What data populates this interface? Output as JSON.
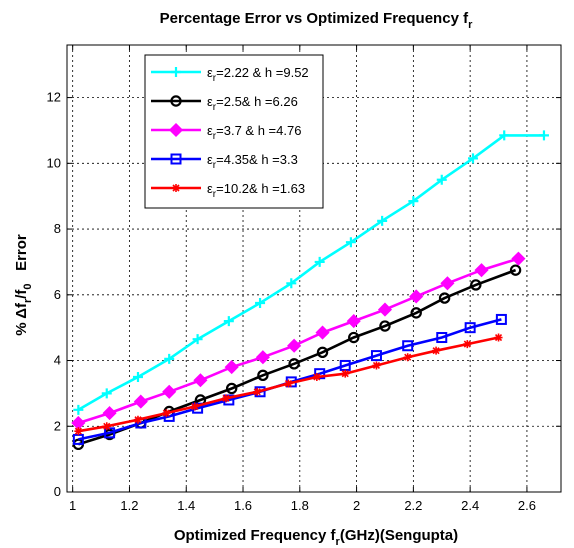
{
  "chart_data": {
    "type": "line",
    "title": "Percentage Error vs Optimized Frequency f",
    "title_sub": "r",
    "xlabel": {
      "pre": "Optimized Frequency f",
      "sub": "r",
      "post": "(GHz)(Sengupta)"
    },
    "ylabel": {
      "a": "% ",
      "delta": "Δ",
      "b": "f",
      "sub1": "r",
      "c": "/f",
      "sub2": "0",
      "d": "   Error"
    },
    "xlim": [
      0.98,
      2.72
    ],
    "ylim": [
      0,
      13.6
    ],
    "xticks": [
      1,
      1.2,
      1.4,
      1.6,
      1.8,
      2,
      2.2,
      2.4,
      2.6
    ],
    "xtick_labels": [
      "1",
      "1.2",
      "1.4",
      "1.6",
      "1.8",
      "2",
      "2.2",
      "2.4",
      "2.6"
    ],
    "yticks": [
      0,
      2,
      4,
      6,
      8,
      10,
      12
    ],
    "ytick_labels": [
      "0",
      "2",
      "4",
      "6",
      "8",
      "10",
      "12"
    ],
    "grid": true,
    "legend_position": "top-left",
    "series": [
      {
        "name": "εr=2.22 & h =9.52",
        "eps": "=2.22 & h =9.52",
        "color": "#00ffff",
        "marker": "plus",
        "x": [
          1.02,
          1.12,
          1.23,
          1.34,
          1.44,
          1.55,
          1.66,
          1.77,
          1.87,
          1.98,
          2.09,
          2.2,
          2.3,
          2.41,
          2.52,
          2.66
        ],
        "y": [
          2.5,
          3.0,
          3.5,
          4.05,
          4.65,
          5.2,
          5.75,
          6.35,
          7.0,
          7.6,
          8.25,
          8.85,
          9.5,
          10.15,
          10.85,
          10.85
        ]
      },
      {
        "name": "εr=2.5& h =6.26",
        "eps": "=2.5& h =6.26",
        "color": "#000000",
        "marker": "circle",
        "x": [
          1.02,
          1.13,
          1.24,
          1.34,
          1.45,
          1.56,
          1.67,
          1.78,
          1.88,
          1.99,
          2.1,
          2.21,
          2.31,
          2.42,
          2.56
        ],
        "y": [
          1.45,
          1.75,
          2.1,
          2.45,
          2.8,
          3.15,
          3.55,
          3.9,
          4.25,
          4.7,
          5.05,
          5.45,
          5.9,
          6.3,
          6.75
        ]
      },
      {
        "name": "εr=3.7 & h =4.76",
        "eps": "=3.7 & h =4.76",
        "color": "#ff00ff",
        "marker": "diamond",
        "x": [
          1.02,
          1.13,
          1.24,
          1.34,
          1.45,
          1.56,
          1.67,
          1.78,
          1.88,
          1.99,
          2.1,
          2.21,
          2.32,
          2.44,
          2.57
        ],
        "y": [
          2.1,
          2.4,
          2.75,
          3.05,
          3.4,
          3.8,
          4.1,
          4.45,
          4.85,
          5.2,
          5.55,
          5.95,
          6.35,
          6.75,
          7.1
        ]
      },
      {
        "name": "εr=4.35& h =3.3",
        "eps": "=4.35& h =3.3",
        "color": "#0000ff",
        "marker": "square",
        "x": [
          1.02,
          1.13,
          1.24,
          1.34,
          1.44,
          1.55,
          1.66,
          1.77,
          1.87,
          1.96,
          2.07,
          2.18,
          2.3,
          2.4,
          2.51
        ],
        "y": [
          1.6,
          1.8,
          2.1,
          2.3,
          2.55,
          2.8,
          3.05,
          3.35,
          3.6,
          3.85,
          4.15,
          4.45,
          4.7,
          5.0,
          5.25
        ]
      },
      {
        "name": "εr=10.2& h =1.63",
        "eps": "=10.2& h =1.63",
        "color": "#ff0000",
        "marker": "star",
        "x": [
          1.02,
          1.12,
          1.23,
          1.33,
          1.43,
          1.54,
          1.65,
          1.76,
          1.86,
          1.96,
          2.07,
          2.18,
          2.28,
          2.39,
          2.5
        ],
        "y": [
          1.85,
          2.0,
          2.2,
          2.4,
          2.6,
          2.85,
          3.05,
          3.3,
          3.5,
          3.6,
          3.85,
          4.1,
          4.3,
          4.5,
          4.7
        ]
      }
    ]
  }
}
